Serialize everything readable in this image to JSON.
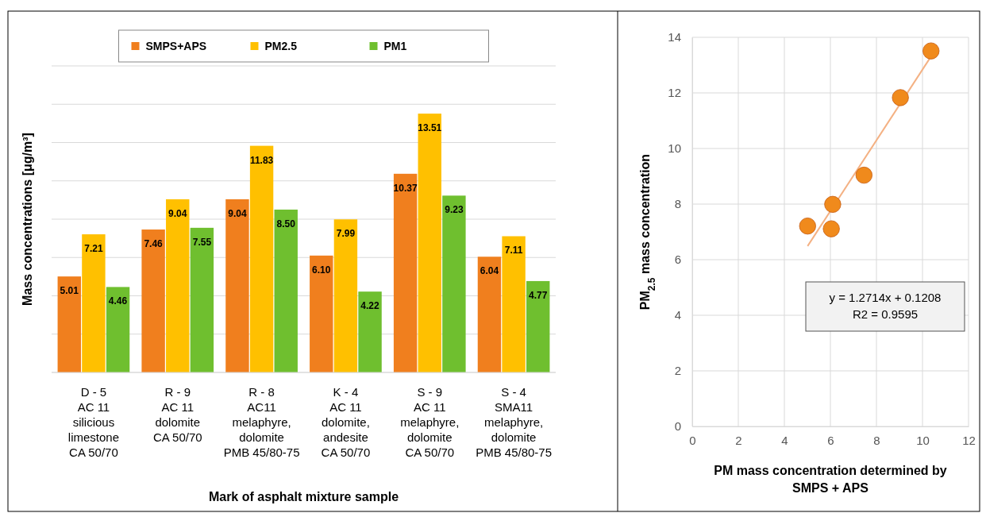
{
  "chart_data": [
    {
      "type": "bar",
      "xlabel": "Mark of asphalt mixture sample",
      "ylabel": "Mass concentrations [μg/m³]",
      "categories": [
        "D - 5\nAC 11\nsilicious\nlimestone\nCA 50/70",
        "R - 9\nAC 11\ndolomite\nCA 50/70",
        "R - 8\nAC11\nmelaphyre,\ndolomite\nPMB 45/80-75",
        "K - 4\nAC 11\ndolomite,\nandesite\nCA 50/70",
        "S - 9\nAC 11\nmelaphyre,\ndolomite\nCA 50/70",
        "S - 4\nSMA11\nmelaphyre,\ndolomite\nPMB 45/80-75"
      ],
      "series": [
        {
          "name": "SMPS+APS",
          "color": "#f07f1e",
          "values": [
            5.01,
            7.46,
            9.04,
            6.1,
            10.37,
            6.04
          ],
          "value_labels": [
            "5.01",
            "7.46",
            "9.04",
            "6.10",
            "10.37",
            "6.04"
          ]
        },
        {
          "name": "PM2.5",
          "color": "#ffc000",
          "values": [
            7.21,
            9.04,
            11.83,
            7.99,
            13.51,
            7.11
          ],
          "value_labels": [
            "7.21",
            "9.04",
            "11.83",
            "7.99",
            "13.51",
            "7.11"
          ]
        },
        {
          "name": "PM1",
          "color": "#6fbf2f",
          "values": [
            4.46,
            7.55,
            8.5,
            4.22,
            9.23,
            4.77
          ],
          "value_labels": [
            "4.46",
            "7.55",
            "8.50",
            "4.22",
            "9.23",
            "4.77"
          ]
        }
      ],
      "ylim": [
        0,
        16
      ],
      "yticks": [
        {
          "value": 0,
          "label": null
        },
        {
          "value": 2,
          "label": null
        },
        {
          "value": 4,
          "label": null
        },
        {
          "value": 6,
          "label": null
        },
        {
          "value": 8,
          "label": null
        },
        {
          "value": 10,
          "label": null
        },
        {
          "value": 12,
          "label": null
        },
        {
          "value": 14,
          "label": null
        },
        {
          "value": 16,
          "label": null
        }
      ],
      "grid": "y",
      "legend": "top",
      "tick_labels": "x"
    },
    {
      "type": "scatter",
      "xlabel": "PM mass concentration determined by SMPS + APS",
      "ylabel": "PM$_{2.5}$ mass concentration",
      "series": [
        {
          "x": [
            5.01,
            7.46,
            9.04,
            6.1,
            10.37,
            6.04
          ],
          "values": [
            7.21,
            9.04,
            11.83,
            7.99,
            13.51,
            7.11
          ],
          "color": "#f08a1c",
          "marker": "circle"
        },
        {
          "type": "line",
          "x": [
            5.01,
            10.37
          ],
          "values": [
            6.49,
            13.31
          ],
          "color": "#f4b183",
          "line_style": "solid"
        }
      ],
      "xlim": [
        0,
        12
      ],
      "xticks": [
        0,
        2,
        4,
        6,
        8,
        10,
        12
      ],
      "ylim": [
        0,
        14
      ],
      "yticks": [
        0,
        2,
        4,
        6,
        8,
        10,
        12,
        14
      ],
      "grid": true,
      "annotations": [
        "y = 1.2714x + 0.1208",
        "R2 = 0.9595"
      ]
    }
  ]
}
